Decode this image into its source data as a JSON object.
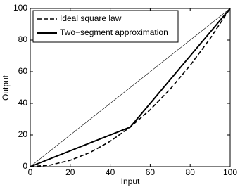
{
  "chart_data": {
    "type": "line",
    "xlabel": "Input",
    "ylabel": "Output",
    "xlim": [
      0,
      100
    ],
    "ylim": [
      0,
      100
    ],
    "xticks": [
      0,
      20,
      40,
      60,
      80,
      100
    ],
    "yticks": [
      0,
      20,
      40,
      60,
      80,
      100
    ],
    "legend": "upper left",
    "series": [
      {
        "name": "Ideal square law",
        "color": "#000000",
        "linestyle": "dashed",
        "linewidth": 1.6,
        "x": [
          0,
          10,
          20,
          30,
          40,
          50,
          60,
          70,
          80,
          90,
          100
        ],
        "values": [
          0,
          1,
          4,
          9,
          16,
          25,
          36,
          49,
          64,
          81,
          100
        ]
      },
      {
        "name": "Two−segment approximation",
        "color": "#000000",
        "linestyle": "solid",
        "linewidth": 2,
        "x": [
          0,
          50,
          100
        ],
        "values": [
          0,
          25,
          100
        ]
      },
      {
        "color": "#000000",
        "linestyle": "solid",
        "linewidth": 0.6,
        "x": [
          0,
          100
        ],
        "values": [
          0,
          100
        ]
      }
    ]
  }
}
